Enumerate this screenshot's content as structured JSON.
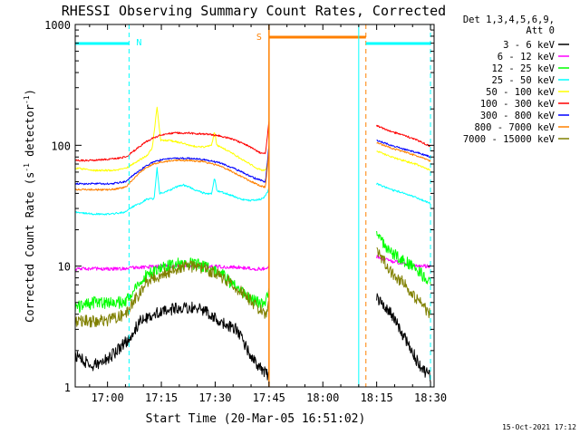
{
  "chart_data": {
    "type": "line",
    "title": "RHESSI Observing Summary Count Rates, Corrected",
    "xlabel": "Start Time (20-Mar-05 16:51:02)",
    "ylabel_main": "Corrected Count Rate (s",
    "ylabel_sup1": "-1",
    "ylabel_mid": " detector",
    "ylabel_sup2": "-1",
    "ylabel_end": ")",
    "y_scale": "log",
    "ylim": [
      1,
      1000
    ],
    "xlim_minutes": [
      0,
      100
    ],
    "x_tick_labels": [
      {
        "label": "17:00",
        "t": 9
      },
      {
        "label": "17:15",
        "t": 24
      },
      {
        "label": "17:30",
        "t": 39
      },
      {
        "label": "17:45",
        "t": 54
      },
      {
        "label": "18:00",
        "t": 69
      },
      {
        "label": "18:15",
        "t": 84
      },
      {
        "label": "18:30",
        "t": 99
      }
    ],
    "y_tick_labels": [
      {
        "label": "1",
        "v": 1
      },
      {
        "label": "10",
        "v": 10
      },
      {
        "label": "100",
        "v": 100
      },
      {
        "label": "1000",
        "v": 1000
      }
    ],
    "legend_header": [
      "Det 1,3,4,5,6,9,",
      "Att 0"
    ],
    "legend_position": "right",
    "footer_date": "15-Oct-2021 17:12",
    "gaps_minutes": [
      [
        54,
        84
      ]
    ],
    "night_markers": [
      {
        "label": "N",
        "t_start": 0,
        "t_end": 15,
        "line_end": 15
      }
    ],
    "saa_markers": [
      {
        "label": "S",
        "t_start": 54,
        "t_end": 81
      }
    ],
    "extra_markers": [
      {
        "t": 79,
        "style": "solid",
        "color": "#00ffff"
      },
      {
        "t": 81,
        "style": "dashed",
        "color": "#ff8000"
      },
      {
        "t": 99,
        "style": "dashed",
        "color": "#00ffff"
      }
    ],
    "post_gap_segment": {
      "t_start": 81,
      "t_end": 99
    },
    "series": [
      {
        "name": "3 - 6 keV",
        "color": "#000000",
        "pre": [
          [
            0,
            1.8
          ],
          [
            5,
            1.5
          ],
          [
            10,
            1.8
          ],
          [
            15,
            2.5
          ],
          [
            18,
            3.5
          ],
          [
            22,
            4.0
          ],
          [
            28,
            4.5
          ],
          [
            35,
            4.5
          ],
          [
            40,
            3.5
          ],
          [
            45,
            3.0
          ],
          [
            48,
            2.0
          ],
          [
            51,
            1.5
          ],
          [
            54,
            1.2
          ]
        ],
        "post": [
          [
            84,
            5.5
          ],
          [
            88,
            4.0
          ],
          [
            92,
            2.5
          ],
          [
            96,
            1.5
          ],
          [
            99,
            1.2
          ]
        ]
      },
      {
        "name": "6 - 12 keV",
        "color": "#ff00ff",
        "pre": [
          [
            0,
            9.5
          ],
          [
            5,
            9.5
          ],
          [
            10,
            9.5
          ],
          [
            14,
            9.6
          ],
          [
            18,
            9.8
          ],
          [
            25,
            10.0
          ],
          [
            35,
            10.0
          ],
          [
            45,
            9.8
          ],
          [
            50,
            9.5
          ],
          [
            53,
            9.5
          ],
          [
            54,
            10
          ]
        ],
        "post": [
          [
            84,
            12
          ],
          [
            88,
            11
          ],
          [
            92,
            10.5
          ],
          [
            96,
            10
          ],
          [
            99,
            10
          ]
        ]
      },
      {
        "name": "12 - 25 keV",
        "color": "#00ff00",
        "pre": [
          [
            0,
            4.5
          ],
          [
            5,
            5.0
          ],
          [
            10,
            5.0
          ],
          [
            14,
            5.0
          ],
          [
            16,
            6.0
          ],
          [
            18,
            7.5
          ],
          [
            20,
            8.5
          ],
          [
            24,
            9.5
          ],
          [
            28,
            10.5
          ],
          [
            32,
            10.5
          ],
          [
            36,
            10.0
          ],
          [
            40,
            9.0
          ],
          [
            44,
            7.0
          ],
          [
            48,
            5.5
          ],
          [
            51,
            5.0
          ],
          [
            53,
            5.0
          ],
          [
            54,
            6
          ]
        ],
        "post": [
          [
            84,
            18
          ],
          [
            86,
            15
          ],
          [
            88,
            13
          ],
          [
            92,
            11
          ],
          [
            96,
            9
          ],
          [
            99,
            7
          ]
        ]
      },
      {
        "name": "25 - 50 keV",
        "color": "#00ffff",
        "pre": [
          [
            0,
            28
          ],
          [
            5,
            27
          ],
          [
            10,
            27
          ],
          [
            14,
            28
          ],
          [
            16,
            31
          ],
          [
            18,
            33
          ],
          [
            20,
            36
          ],
          [
            22,
            36
          ],
          [
            22.8,
            65
          ],
          [
            23.5,
            40
          ],
          [
            26,
            42
          ],
          [
            28,
            45
          ],
          [
            30,
            47
          ],
          [
            32,
            45
          ],
          [
            34,
            42
          ],
          [
            36,
            40
          ],
          [
            38,
            40
          ],
          [
            38.8,
            54
          ],
          [
            39.5,
            42
          ],
          [
            42,
            40
          ],
          [
            44,
            38
          ],
          [
            46,
            36
          ],
          [
            48,
            35
          ],
          [
            50,
            35
          ],
          [
            52,
            36
          ],
          [
            53,
            38
          ],
          [
            54,
            44
          ]
        ],
        "post": [
          [
            84,
            48
          ],
          [
            88,
            43
          ],
          [
            92,
            40
          ],
          [
            96,
            36
          ],
          [
            99,
            33
          ]
        ]
      },
      {
        "name": "50 - 100 keV",
        "color": "#ffff00",
        "pre": [
          [
            0,
            65
          ],
          [
            5,
            62
          ],
          [
            10,
            62
          ],
          [
            14,
            64
          ],
          [
            16,
            70
          ],
          [
            18,
            76
          ],
          [
            20,
            82
          ],
          [
            21.5,
            95
          ],
          [
            22.8,
            210
          ],
          [
            23.8,
            110
          ],
          [
            26,
            110
          ],
          [
            28,
            107
          ],
          [
            30,
            104
          ],
          [
            32,
            100
          ],
          [
            34,
            97
          ],
          [
            36,
            97
          ],
          [
            38,
            100
          ],
          [
            38.8,
            130
          ],
          [
            39.5,
            100
          ],
          [
            42,
            92
          ],
          [
            44,
            85
          ],
          [
            46,
            78
          ],
          [
            48,
            72
          ],
          [
            50,
            66
          ],
          [
            52,
            62
          ],
          [
            53,
            62
          ],
          [
            54,
            80
          ]
        ],
        "post": [
          [
            84,
            90
          ],
          [
            88,
            80
          ],
          [
            92,
            74
          ],
          [
            96,
            68
          ],
          [
            99,
            62
          ]
        ]
      },
      {
        "name": "100 - 300 keV",
        "color": "#ff0000",
        "pre": [
          [
            0,
            75
          ],
          [
            5,
            75
          ],
          [
            10,
            77
          ],
          [
            14,
            80
          ],
          [
            16,
            88
          ],
          [
            18,
            98
          ],
          [
            20,
            108
          ],
          [
            22,
            116
          ],
          [
            24,
            122
          ],
          [
            28,
            127
          ],
          [
            32,
            126
          ],
          [
            36,
            124
          ],
          [
            40,
            120
          ],
          [
            44,
            112
          ],
          [
            48,
            100
          ],
          [
            51,
            88
          ],
          [
            53,
            85
          ],
          [
            54,
            160
          ]
        ],
        "post": [
          [
            84,
            145
          ],
          [
            88,
            130
          ],
          [
            92,
            120
          ],
          [
            96,
            108
          ],
          [
            99,
            98
          ]
        ]
      },
      {
        "name": "300 - 800 keV",
        "color": "#0000ff",
        "pre": [
          [
            0,
            48
          ],
          [
            5,
            48
          ],
          [
            10,
            48
          ],
          [
            14,
            50
          ],
          [
            16,
            56
          ],
          [
            18,
            62
          ],
          [
            20,
            68
          ],
          [
            22,
            73
          ],
          [
            24,
            76
          ],
          [
            28,
            78
          ],
          [
            32,
            78
          ],
          [
            36,
            76
          ],
          [
            40,
            72
          ],
          [
            44,
            65
          ],
          [
            48,
            57
          ],
          [
            51,
            52
          ],
          [
            53,
            50
          ],
          [
            54,
            100
          ]
        ],
        "post": [
          [
            84,
            110
          ],
          [
            88,
            100
          ],
          [
            92,
            92
          ],
          [
            96,
            86
          ],
          [
            99,
            80
          ]
        ]
      },
      {
        "name": "800 - 7000 keV",
        "color": "#ff8000",
        "pre": [
          [
            0,
            43
          ],
          [
            5,
            43
          ],
          [
            10,
            43
          ],
          [
            14,
            45
          ],
          [
            16,
            52
          ],
          [
            18,
            60
          ],
          [
            20,
            66
          ],
          [
            22,
            70
          ],
          [
            24,
            73
          ],
          [
            28,
            75
          ],
          [
            32,
            75
          ],
          [
            36,
            73
          ],
          [
            40,
            68
          ],
          [
            44,
            60
          ],
          [
            48,
            52
          ],
          [
            51,
            47
          ],
          [
            53,
            45
          ],
          [
            54,
            90
          ]
        ],
        "post": [
          [
            84,
            105
          ],
          [
            88,
            95
          ],
          [
            92,
            88
          ],
          [
            96,
            80
          ],
          [
            99,
            74
          ]
        ]
      },
      {
        "name": "7000 - 15000 keV",
        "color": "#808000",
        "pre": [
          [
            0,
            3.5
          ],
          [
            5,
            3.5
          ],
          [
            10,
            3.6
          ],
          [
            14,
            4.0
          ],
          [
            16,
            5.0
          ],
          [
            18,
            6.0
          ],
          [
            20,
            7.5
          ],
          [
            24,
            8.5
          ],
          [
            28,
            9.5
          ],
          [
            32,
            10.0
          ],
          [
            36,
            9.5
          ],
          [
            40,
            8.5
          ],
          [
            44,
            7.0
          ],
          [
            48,
            5.5
          ],
          [
            51,
            4.5
          ],
          [
            53,
            4.0
          ],
          [
            54,
            5
          ]
        ],
        "post": [
          [
            84,
            14
          ],
          [
            86,
            11
          ],
          [
            88,
            9
          ],
          [
            92,
            7
          ],
          [
            96,
            5
          ],
          [
            99,
            4
          ]
        ]
      }
    ]
  }
}
